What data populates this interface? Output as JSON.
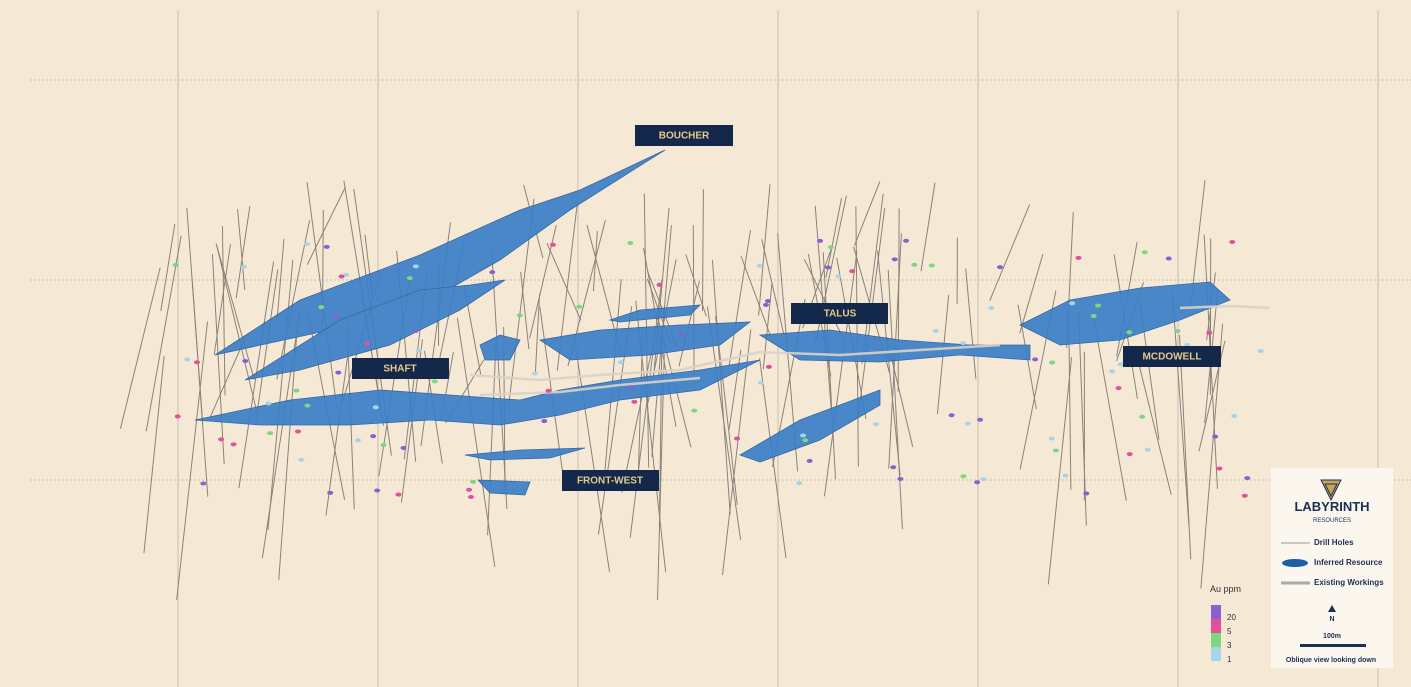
{
  "labels": {
    "boucher": "BOUCHER",
    "shaft": "SHAFT",
    "talus": "TALUS",
    "mcdowell": "MCDOWELL",
    "front_west": "FRONT-WEST"
  },
  "au_legend": {
    "title": "Au ppm",
    "items": [
      20,
      5,
      3,
      1
    ]
  },
  "legend": {
    "company": "LABYRINTH",
    "subtitle": "RESOURCES",
    "items": [
      "Drill Holes",
      "Inferred Resource",
      "Existing Workings"
    ],
    "north": "N",
    "scale": "100m",
    "view": "Oblique view looking down"
  }
}
